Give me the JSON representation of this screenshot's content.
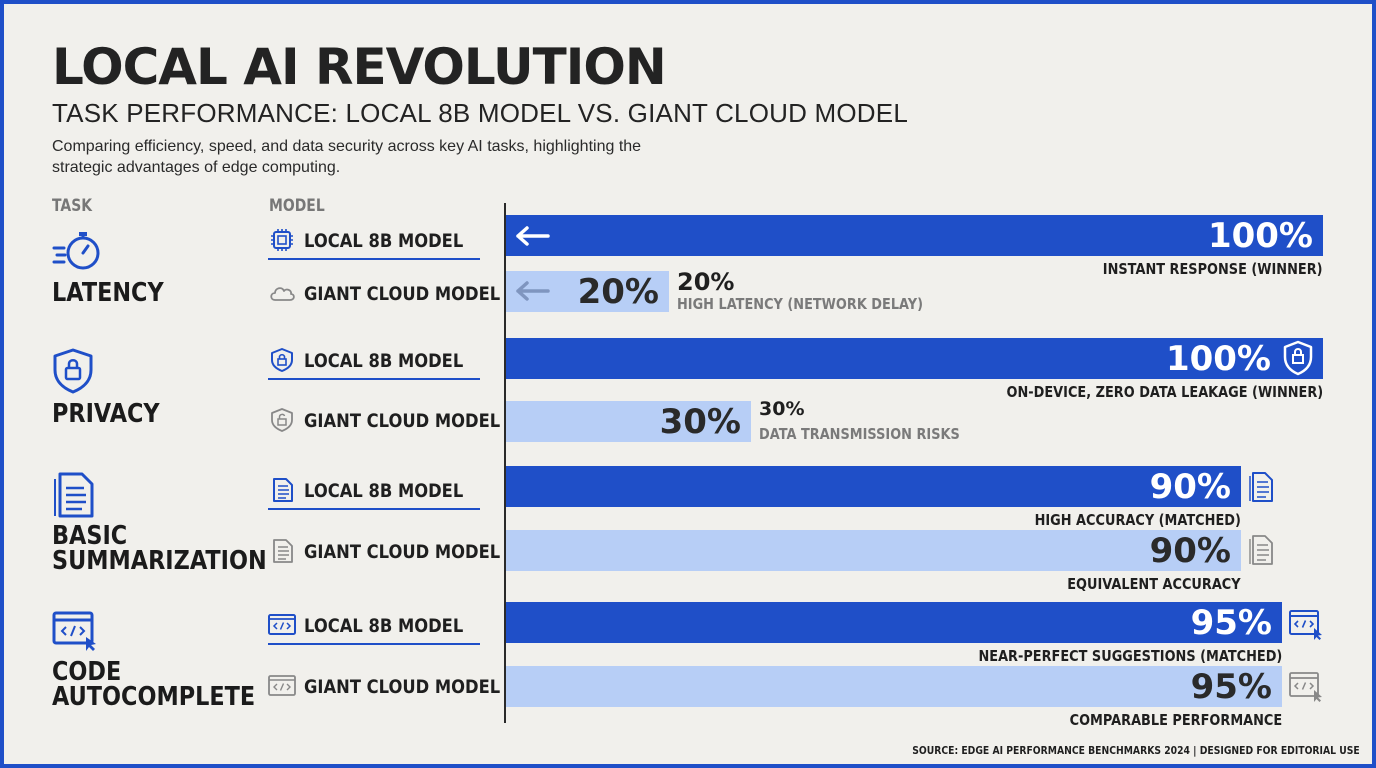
{
  "header": {
    "title": "LOCAL AI REVOLUTION",
    "subtitle": "TASK PERFORMANCE: LOCAL 8B MODEL VS. GIANT CLOUD MODEL",
    "description": "Comparing efficiency, speed, and data security across key AI tasks, highlighting the strategic advantages of edge computing."
  },
  "columns": {
    "task": "TASK",
    "model": "MODEL"
  },
  "colors": {
    "local": "#1f4fc8",
    "cloud": "#b7cef6",
    "text": "#1f1f1f",
    "background": "#f1f0ec"
  },
  "models": {
    "local": "LOCAL 8B MODEL",
    "cloud": "GIANT CLOUD MODEL"
  },
  "chart_data": {
    "type": "bar",
    "orientation": "horizontal",
    "unit": "%",
    "xlim": [
      0,
      100
    ],
    "categories": [
      "LATENCY",
      "PRIVACY",
      "BASIC SUMMARIZATION",
      "CODE AUTOCOMPLETE"
    ],
    "task_icons": [
      "stopwatch-icon",
      "shield-lock-icon",
      "document-icon",
      "code-window-icon"
    ],
    "series": [
      {
        "name": "LOCAL 8B MODEL",
        "values": [
          100,
          100,
          90,
          95
        ],
        "value_labels": [
          "100%",
          "100%",
          "90%",
          "95%"
        ],
        "notes": [
          "INSTANT RESPONSE (WINNER)",
          "ON-DEVICE, ZERO DATA LEAKAGE (WINNER)",
          "HIGH ACCURACY (MATCHED)",
          "NEAR-PERFECT SUGGESTIONS (MATCHED)"
        ]
      },
      {
        "name": "GIANT CLOUD MODEL",
        "values": [
          20,
          30,
          90,
          95
        ],
        "value_labels": [
          "20%",
          "30%",
          "90%",
          "95%"
        ],
        "notes": [
          "HIGH LATENCY (NETWORK DELAY)",
          "DATA TRANSMISSION RISKS",
          "EQUIVALENT ACCURACY",
          "COMPARABLE PERFORMANCE"
        ]
      }
    ],
    "source": "SOURCE: EDGE AI PERFORMANCE BENCHMARKS 2024 | DESIGNED FOR EDITORIAL USE"
  }
}
